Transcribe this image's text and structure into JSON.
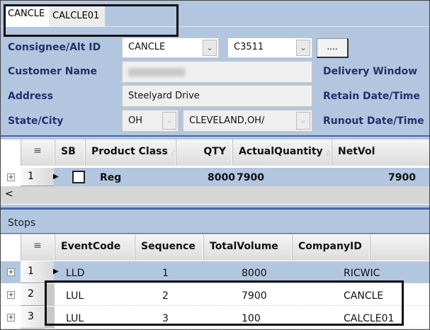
{
  "tabs": [
    "CANCLE",
    "CALCLE01"
  ],
  "form": {
    "consignee_label": "Consignee/Alt ID",
    "consignee_value": "CANCLE",
    "alt_id_value": "C3511",
    "lookup_button": "....",
    "customer_name_label": "Customer Name",
    "customer_name_value": "",
    "address_label": "Address",
    "address_value": "Steelyard Drive",
    "state_city_label": "State/City",
    "state_value": "OH",
    "city_value": "CLEVELAND,OH/",
    "delivery_window_label": "Delivery Window",
    "retain_label": "Retain Date/Time",
    "runout_label": "Runout Date/Time"
  },
  "products": {
    "columns": [
      "SB",
      "Product Class",
      "QTY",
      "ActualQuantity",
      "NetVol"
    ],
    "rows": [
      {
        "num": "1",
        "sb": false,
        "product_class": "Reg",
        "qty": "8000",
        "actual": "7900",
        "netvol": "7900"
      }
    ],
    "scroll_left": "<"
  },
  "stops": {
    "title": "Stops",
    "columns": [
      "EventCode",
      "Sequence",
      "TotalVolume",
      "CompanyID"
    ],
    "rows": [
      {
        "num": "1",
        "event": "LLD",
        "seq": "1",
        "vol": "8000",
        "company": "RICWIC"
      },
      {
        "num": "2",
        "event": "LUL",
        "seq": "2",
        "vol": "7900",
        "company": "CANCLE"
      },
      {
        "num": "3",
        "event": "LUL",
        "seq": "3",
        "vol": "100",
        "company": "CALCLE01"
      }
    ]
  },
  "colors": {
    "background": "#b3c6df",
    "label": "#23306e",
    "selected_row": "#b3c6df"
  }
}
